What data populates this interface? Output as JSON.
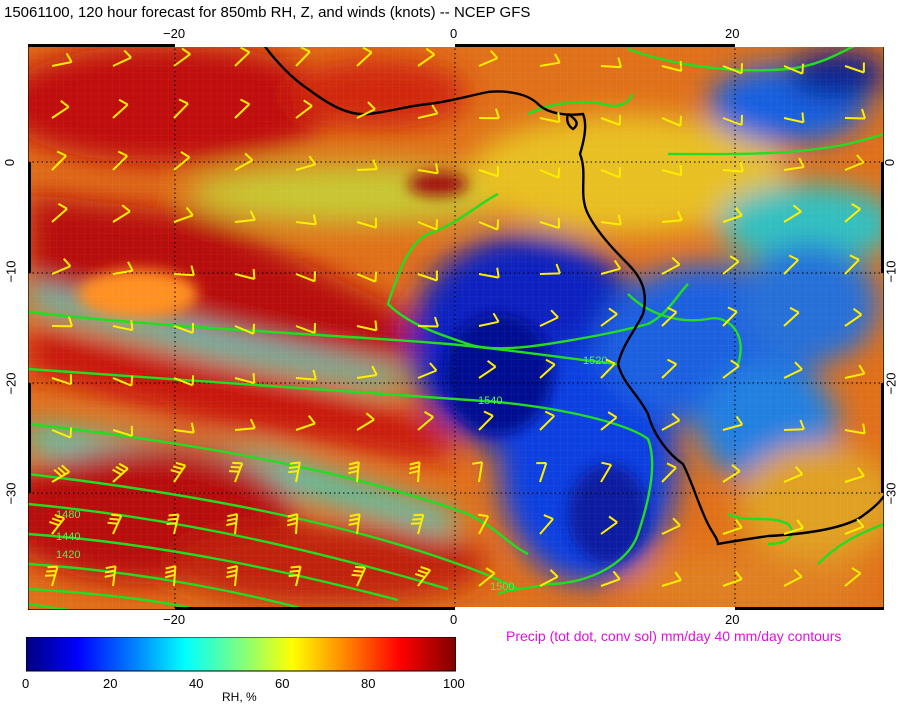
{
  "title": "15061100, 120 hour forecast for 850mb RH, Z, and winds (knots)  -- NCEP GFS",
  "axes": {
    "top_ticks": [
      "−20",
      "0",
      "20"
    ],
    "bottom_ticks": [
      "−20",
      "0",
      "20"
    ],
    "left_ticks": [
      "0",
      "−10",
      "−20",
      "−30"
    ],
    "right_ticks": [
      "0",
      "−10",
      "−20",
      "−30"
    ]
  },
  "contour_labels": [
    "1520",
    "1540",
    "1500",
    "1480",
    "1440",
    "1420"
  ],
  "precip_note": "Precip (tot dot, conv sol) mm/day 40 mm/day contours",
  "colorbar": {
    "ticks": [
      "0",
      "20",
      "40",
      "60",
      "80",
      "100"
    ],
    "title": "RH, %",
    "colors": [
      "#00007f",
      "#0000ff",
      "#007fff",
      "#00ffff",
      "#7fff7f",
      "#ffff00",
      "#ff7f00",
      "#ff0000",
      "#7f0000"
    ]
  },
  "colors": {
    "coastline": "#000000",
    "height_contours": "#22dd22",
    "wind_barbs": "#ffee00",
    "precip_text": "#e011e0"
  }
}
